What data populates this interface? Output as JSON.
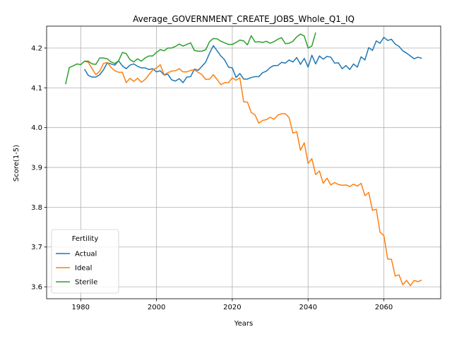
{
  "chart_data": {
    "type": "line",
    "title": "Average_GOVERNMENT_CREATE_JOBS_Whole_Q1_IQ",
    "xlabel": "Years",
    "ylabel": "Score(1-5)",
    "xlim": [
      1971,
      2075
    ],
    "ylim": [
      3.57,
      4.255
    ],
    "xticks": [
      1980,
      2000,
      2020,
      2040,
      2060
    ],
    "yticks": [
      3.6,
      3.7,
      3.8,
      3.9,
      4.0,
      4.1,
      4.2
    ],
    "xtick_labels": [
      "1980",
      "2000",
      "2020",
      "2040",
      "2060"
    ],
    "ytick_labels": [
      "3.6",
      "3.7",
      "3.8",
      "3.9",
      "4.0",
      "4.1",
      "4.2"
    ],
    "grid": true,
    "legend": {
      "title": "Fertility",
      "placement": "lower-left"
    },
    "series": [
      {
        "name": "Actual",
        "color": "#1f77b4",
        "x": [
          1981,
          1982,
          1983,
          1984,
          1985,
          1986,
          1987,
          1988,
          1989,
          1990,
          1991,
          1992,
          1993,
          1994,
          1995,
          1996,
          1997,
          1998,
          1999,
          2000,
          2001,
          2002,
          2003,
          2004,
          2005,
          2006,
          2007,
          2008,
          2009,
          2010,
          2011,
          2012,
          2013,
          2014,
          2015,
          2016,
          2017,
          2018,
          2019,
          2020,
          2021,
          2022,
          2023,
          2024,
          2025,
          2026,
          2027,
          2028,
          2029,
          2030,
          2031,
          2032,
          2033,
          2034,
          2035,
          2036,
          2037,
          2038,
          2039,
          2040,
          2041,
          2042,
          2043,
          2044,
          2045,
          2046,
          2047,
          2048,
          2049,
          2050,
          2051,
          2052,
          2053,
          2054,
          2055,
          2056,
          2057,
          2058,
          2059,
          2060,
          2061,
          2062,
          2063,
          2064,
          2065,
          2066,
          2067,
          2068,
          2069,
          2070
        ],
        "values": [
          4.147,
          4.131,
          4.127,
          4.127,
          4.133,
          4.145,
          4.163,
          4.16,
          4.157,
          4.168,
          4.155,
          4.148,
          4.157,
          4.16,
          4.154,
          4.15,
          4.15,
          4.146,
          4.148,
          4.14,
          4.143,
          4.132,
          4.134,
          4.12,
          4.117,
          4.123,
          4.113,
          4.127,
          4.128,
          4.147,
          4.144,
          4.154,
          4.165,
          4.187,
          4.206,
          4.193,
          4.18,
          4.17,
          4.152,
          4.15,
          4.126,
          4.136,
          4.122,
          4.122,
          4.126,
          4.128,
          4.128,
          4.138,
          4.142,
          4.151,
          4.156,
          4.156,
          4.164,
          4.162,
          4.17,
          4.165,
          4.176,
          4.159,
          4.174,
          4.152,
          4.182,
          4.16,
          4.18,
          4.172,
          4.179,
          4.177,
          4.162,
          4.163,
          4.148,
          4.156,
          4.146,
          4.16,
          4.152,
          4.178,
          4.17,
          4.201,
          4.194,
          4.218,
          4.212,
          4.227,
          4.219,
          4.222,
          4.21,
          4.204,
          4.193,
          4.187,
          4.18,
          4.173,
          4.177,
          4.174
        ]
      },
      {
        "name": "Ideal",
        "color": "#ff7f0e",
        "x": [
          1981,
          1982,
          1983,
          1984,
          1985,
          1986,
          1987,
          1988,
          1989,
          1990,
          1991,
          1992,
          1993,
          1994,
          1995,
          1996,
          1997,
          1998,
          1999,
          2000,
          2001,
          2002,
          2003,
          2004,
          2005,
          2006,
          2007,
          2008,
          2009,
          2010,
          2011,
          2012,
          2013,
          2014,
          2015,
          2016,
          2017,
          2018,
          2019,
          2020,
          2021,
          2022,
          2023,
          2024,
          2025,
          2026,
          2027,
          2028,
          2029,
          2030,
          2031,
          2032,
          2033,
          2034,
          2035,
          2036,
          2037,
          2038,
          2039,
          2040,
          2041,
          2042,
          2043,
          2044,
          2045,
          2046,
          2047,
          2048,
          2049,
          2050,
          2051,
          2052,
          2053,
          2054,
          2055,
          2056,
          2057,
          2058,
          2059,
          2060,
          2061,
          2062,
          2063,
          2064,
          2065,
          2066,
          2067,
          2068,
          2069,
          2070
        ],
        "values": [
          4.167,
          4.164,
          4.148,
          4.133,
          4.142,
          4.161,
          4.164,
          4.151,
          4.143,
          4.139,
          4.139,
          4.113,
          4.124,
          4.116,
          4.124,
          4.114,
          4.121,
          4.133,
          4.145,
          4.15,
          4.158,
          4.133,
          4.138,
          4.142,
          4.143,
          4.148,
          4.14,
          4.14,
          4.144,
          4.145,
          4.139,
          4.133,
          4.121,
          4.122,
          4.133,
          4.121,
          4.108,
          4.113,
          4.113,
          4.125,
          4.119,
          4.125,
          4.065,
          4.064,
          4.038,
          4.032,
          4.011,
          4.018,
          4.02,
          4.026,
          4.021,
          4.031,
          4.035,
          4.035,
          4.025,
          3.986,
          3.99,
          3.943,
          3.962,
          3.91,
          3.922,
          3.882,
          3.891,
          3.86,
          3.873,
          3.856,
          3.862,
          3.857,
          3.855,
          3.856,
          3.852,
          3.858,
          3.853,
          3.86,
          3.829,
          3.837,
          3.792,
          3.795,
          3.737,
          3.729,
          3.67,
          3.669,
          3.627,
          3.63,
          3.605,
          3.616,
          3.603,
          3.616,
          3.613,
          3.617
        ]
      },
      {
        "name": "Sterile",
        "color": "#2ca02c",
        "x": [
          1976,
          1977,
          1978,
          1979,
          1980,
          1981,
          1982,
          1983,
          1984,
          1985,
          1986,
          1987,
          1988,
          1989,
          1990,
          1991,
          1992,
          1993,
          1994,
          1995,
          1996,
          1997,
          1998,
          1999,
          2000,
          2001,
          2002,
          2003,
          2004,
          2005,
          2006,
          2007,
          2008,
          2009,
          2010,
          2011,
          2012,
          2013,
          2014,
          2015,
          2016,
          2017,
          2018,
          2019,
          2020,
          2021,
          2022,
          2023,
          2024,
          2025,
          2026,
          2027,
          2028,
          2029,
          2030,
          2031,
          2032,
          2033,
          2034,
          2035,
          2036,
          2037,
          2038,
          2039,
          2040,
          2041,
          2042
        ],
        "values": [
          4.109,
          4.151,
          4.155,
          4.16,
          4.158,
          4.167,
          4.167,
          4.16,
          4.159,
          4.175,
          4.175,
          4.173,
          4.165,
          4.161,
          4.168,
          4.189,
          4.186,
          4.171,
          4.165,
          4.173,
          4.167,
          4.175,
          4.18,
          4.18,
          4.189,
          4.196,
          4.193,
          4.2,
          4.2,
          4.204,
          4.21,
          4.205,
          4.209,
          4.213,
          4.194,
          4.192,
          4.192,
          4.196,
          4.216,
          4.224,
          4.223,
          4.217,
          4.213,
          4.209,
          4.209,
          4.214,
          4.22,
          4.218,
          4.208,
          4.231,
          4.215,
          4.216,
          4.214,
          4.217,
          4.212,
          4.216,
          4.222,
          4.226,
          4.211,
          4.212,
          4.217,
          4.228,
          4.235,
          4.23,
          4.2,
          4.205,
          4.239
        ]
      }
    ]
  }
}
